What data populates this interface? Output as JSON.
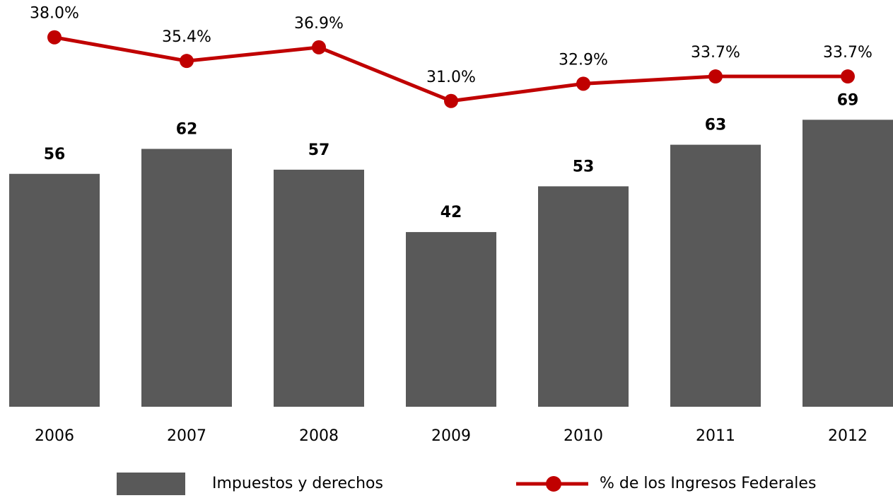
{
  "chart_data": {
    "type": "bar_line",
    "categories": [
      "2006",
      "2007",
      "2008",
      "2009",
      "2010",
      "2011",
      "2012"
    ],
    "series": [
      {
        "name": "Impuestos y derechos",
        "color": "#595959",
        "type": "bar",
        "values": [
          56,
          62,
          57,
          42,
          53,
          63,
          69
        ]
      },
      {
        "name": "% de los Ingresos Federales",
        "color": "#c00000",
        "type": "line",
        "axis": "y2",
        "values": [
          38.0,
          35.4,
          36.9,
          31.0,
          32.9,
          33.7,
          33.7
        ],
        "value_labels": [
          "38.0%",
          "35.4%",
          "36.9%",
          "31.0%",
          "32.9%",
          "33.7%",
          "33.7%"
        ]
      }
    ],
    "ylim": [
      0,
      97.8
    ],
    "y2lim": [
      -2.6,
      42.1
    ],
    "grid": false,
    "legend": "bottom"
  }
}
